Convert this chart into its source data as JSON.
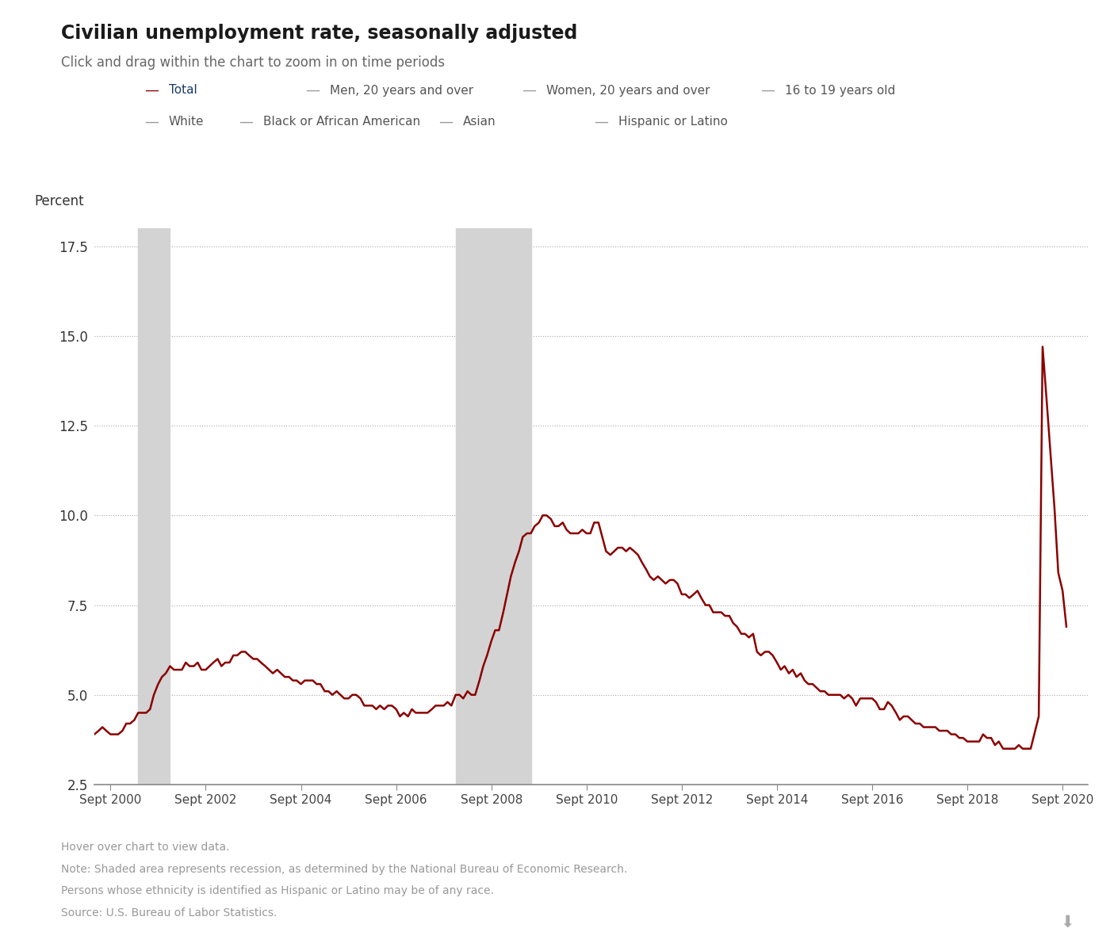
{
  "title": "Civilian unemployment rate, seasonally adjusted",
  "subtitle": "Click and drag within the chart to zoom in on time periods",
  "ylabel": "Percent",
  "background_color": "#ffffff",
  "line_color": "#8B0000",
  "line_width": 1.8,
  "yticks": [
    2.5,
    5.0,
    7.5,
    10.0,
    12.5,
    15.0,
    17.5
  ],
  "ylim": [
    2.5,
    18.0
  ],
  "recession_bands": [
    {
      "start": 2001.25,
      "end": 2001.92
    },
    {
      "start": 2007.92,
      "end": 2009.5
    }
  ],
  "recession_color": "#d3d3d3",
  "xtick_labels": [
    "Sept 2000",
    "Sept 2002",
    "Sept 2004",
    "Sept 2006",
    "Sept 2008",
    "Sept 2010",
    "Sept 2012",
    "Sept 2014",
    "Sept 2016",
    "Sept 2018",
    "Sept 2020"
  ],
  "xtick_positions": [
    2000.67,
    2002.67,
    2004.67,
    2006.67,
    2008.67,
    2010.67,
    2012.67,
    2014.67,
    2016.67,
    2018.67,
    2020.67
  ],
  "xlim": [
    2000.33,
    2021.2
  ],
  "legend_row1": [
    {
      "label": "Total",
      "color": "#8B0000",
      "label_color": "#1a3a6b"
    },
    {
      "label": "Men, 20 years and over",
      "color": "#999999",
      "label_color": "#555555"
    },
    {
      "label": "Women, 20 years and over",
      "color": "#999999",
      "label_color": "#555555"
    },
    {
      "label": "16 to 19 years old",
      "color": "#999999",
      "label_color": "#555555"
    }
  ],
  "legend_row2": [
    {
      "label": "White",
      "color": "#999999",
      "label_color": "#555555"
    },
    {
      "label": "Black or African American",
      "color": "#999999",
      "label_color": "#555555"
    },
    {
      "label": "Asian",
      "color": "#999999",
      "label_color": "#555555"
    },
    {
      "label": "Hispanic or Latino",
      "color": "#999999",
      "label_color": "#555555"
    }
  ],
  "footnotes": [
    "Hover over chart to view data.",
    "Note: Shaded area represents recession, as determined by the National Bureau of Economic Research.",
    "Persons whose ethnicity is identified as Hispanic or Latino may be of any race.",
    "Source: U.S. Bureau of Labor Statistics."
  ],
  "unemployment_dates": [
    2000.33,
    2000.42,
    2000.5,
    2000.58,
    2000.67,
    2000.75,
    2000.83,
    2000.92,
    2001.0,
    2001.08,
    2001.17,
    2001.25,
    2001.33,
    2001.42,
    2001.5,
    2001.58,
    2001.67,
    2001.75,
    2001.83,
    2001.92,
    2002.0,
    2002.08,
    2002.17,
    2002.25,
    2002.33,
    2002.42,
    2002.5,
    2002.58,
    2002.67,
    2002.75,
    2002.83,
    2002.92,
    2003.0,
    2003.08,
    2003.17,
    2003.25,
    2003.33,
    2003.42,
    2003.5,
    2003.58,
    2003.67,
    2003.75,
    2003.83,
    2003.92,
    2004.0,
    2004.08,
    2004.17,
    2004.25,
    2004.33,
    2004.42,
    2004.5,
    2004.58,
    2004.67,
    2004.75,
    2004.83,
    2004.92,
    2005.0,
    2005.08,
    2005.17,
    2005.25,
    2005.33,
    2005.42,
    2005.5,
    2005.58,
    2005.67,
    2005.75,
    2005.83,
    2005.92,
    2006.0,
    2006.08,
    2006.17,
    2006.25,
    2006.33,
    2006.42,
    2006.5,
    2006.58,
    2006.67,
    2006.75,
    2006.83,
    2006.92,
    2007.0,
    2007.08,
    2007.17,
    2007.25,
    2007.33,
    2007.42,
    2007.5,
    2007.58,
    2007.67,
    2007.75,
    2007.83,
    2007.92,
    2008.0,
    2008.08,
    2008.17,
    2008.25,
    2008.33,
    2008.42,
    2008.5,
    2008.58,
    2008.67,
    2008.75,
    2008.83,
    2008.92,
    2009.0,
    2009.08,
    2009.17,
    2009.25,
    2009.33,
    2009.42,
    2009.5,
    2009.58,
    2009.67,
    2009.75,
    2009.83,
    2009.92,
    2010.0,
    2010.08,
    2010.17,
    2010.25,
    2010.33,
    2010.42,
    2010.5,
    2010.58,
    2010.67,
    2010.75,
    2010.83,
    2010.92,
    2011.0,
    2011.08,
    2011.17,
    2011.25,
    2011.33,
    2011.42,
    2011.5,
    2011.58,
    2011.67,
    2011.75,
    2011.83,
    2011.92,
    2012.0,
    2012.08,
    2012.17,
    2012.25,
    2012.33,
    2012.42,
    2012.5,
    2012.58,
    2012.67,
    2012.75,
    2012.83,
    2012.92,
    2013.0,
    2013.08,
    2013.17,
    2013.25,
    2013.33,
    2013.42,
    2013.5,
    2013.58,
    2013.67,
    2013.75,
    2013.83,
    2013.92,
    2014.0,
    2014.08,
    2014.17,
    2014.25,
    2014.33,
    2014.42,
    2014.5,
    2014.58,
    2014.67,
    2014.75,
    2014.83,
    2014.92,
    2015.0,
    2015.08,
    2015.17,
    2015.25,
    2015.33,
    2015.42,
    2015.5,
    2015.58,
    2015.67,
    2015.75,
    2015.83,
    2015.92,
    2016.0,
    2016.08,
    2016.17,
    2016.25,
    2016.33,
    2016.42,
    2016.5,
    2016.58,
    2016.67,
    2016.75,
    2016.83,
    2016.92,
    2017.0,
    2017.08,
    2017.17,
    2017.25,
    2017.33,
    2017.42,
    2017.5,
    2017.58,
    2017.67,
    2017.75,
    2017.83,
    2017.92,
    2018.0,
    2018.08,
    2018.17,
    2018.25,
    2018.33,
    2018.42,
    2018.5,
    2018.58,
    2018.67,
    2018.75,
    2018.83,
    2018.92,
    2019.0,
    2019.08,
    2019.17,
    2019.25,
    2019.33,
    2019.42,
    2019.5,
    2019.58,
    2019.67,
    2019.75,
    2019.83,
    2019.92,
    2020.0,
    2020.17,
    2020.25,
    2020.33,
    2020.5,
    2020.58,
    2020.67,
    2020.75
  ],
  "unemployment_values": [
    3.9,
    4.0,
    4.1,
    4.0,
    3.9,
    3.9,
    3.9,
    4.0,
    4.2,
    4.2,
    4.3,
    4.5,
    4.5,
    4.5,
    4.6,
    5.0,
    5.3,
    5.5,
    5.6,
    5.8,
    5.7,
    5.7,
    5.7,
    5.9,
    5.8,
    5.8,
    5.9,
    5.7,
    5.7,
    5.8,
    5.9,
    6.0,
    5.8,
    5.9,
    5.9,
    6.1,
    6.1,
    6.2,
    6.2,
    6.1,
    6.0,
    6.0,
    5.9,
    5.8,
    5.7,
    5.6,
    5.7,
    5.6,
    5.5,
    5.5,
    5.4,
    5.4,
    5.3,
    5.4,
    5.4,
    5.4,
    5.3,
    5.3,
    5.1,
    5.1,
    5.0,
    5.1,
    5.0,
    4.9,
    4.9,
    5.0,
    5.0,
    4.9,
    4.7,
    4.7,
    4.7,
    4.6,
    4.7,
    4.6,
    4.7,
    4.7,
    4.6,
    4.4,
    4.5,
    4.4,
    4.6,
    4.5,
    4.5,
    4.5,
    4.5,
    4.6,
    4.7,
    4.7,
    4.7,
    4.8,
    4.7,
    5.0,
    5.0,
    4.9,
    5.1,
    5.0,
    5.0,
    5.4,
    5.8,
    6.1,
    6.5,
    6.8,
    6.8,
    7.3,
    7.8,
    8.3,
    8.7,
    9.0,
    9.4,
    9.5,
    9.5,
    9.7,
    9.8,
    10.0,
    10.0,
    9.9,
    9.7,
    9.7,
    9.8,
    9.6,
    9.5,
    9.5,
    9.5,
    9.6,
    9.5,
    9.5,
    9.8,
    9.8,
    9.4,
    9.0,
    8.9,
    9.0,
    9.1,
    9.1,
    9.0,
    9.1,
    9.0,
    8.9,
    8.7,
    8.5,
    8.3,
    8.2,
    8.3,
    8.2,
    8.1,
    8.2,
    8.2,
    8.1,
    7.8,
    7.8,
    7.7,
    7.8,
    7.9,
    7.7,
    7.5,
    7.5,
    7.3,
    7.3,
    7.3,
    7.2,
    7.2,
    7.0,
    6.9,
    6.7,
    6.7,
    6.6,
    6.7,
    6.2,
    6.1,
    6.2,
    6.2,
    6.1,
    5.9,
    5.7,
    5.8,
    5.6,
    5.7,
    5.5,
    5.6,
    5.4,
    5.3,
    5.3,
    5.2,
    5.1,
    5.1,
    5.0,
    5.0,
    5.0,
    5.0,
    4.9,
    5.0,
    4.9,
    4.7,
    4.9,
    4.9,
    4.9,
    4.9,
    4.8,
    4.6,
    4.6,
    4.8,
    4.7,
    4.5,
    4.3,
    4.4,
    4.4,
    4.3,
    4.2,
    4.2,
    4.1,
    4.1,
    4.1,
    4.1,
    4.0,
    4.0,
    4.0,
    3.9,
    3.9,
    3.8,
    3.8,
    3.7,
    3.7,
    3.7,
    3.7,
    3.9,
    3.8,
    3.8,
    3.6,
    3.7,
    3.5,
    3.5,
    3.5,
    3.5,
    3.6,
    3.5,
    3.5,
    3.5,
    4.4,
    14.7,
    13.3,
    10.2,
    8.4,
    7.9,
    6.9
  ]
}
